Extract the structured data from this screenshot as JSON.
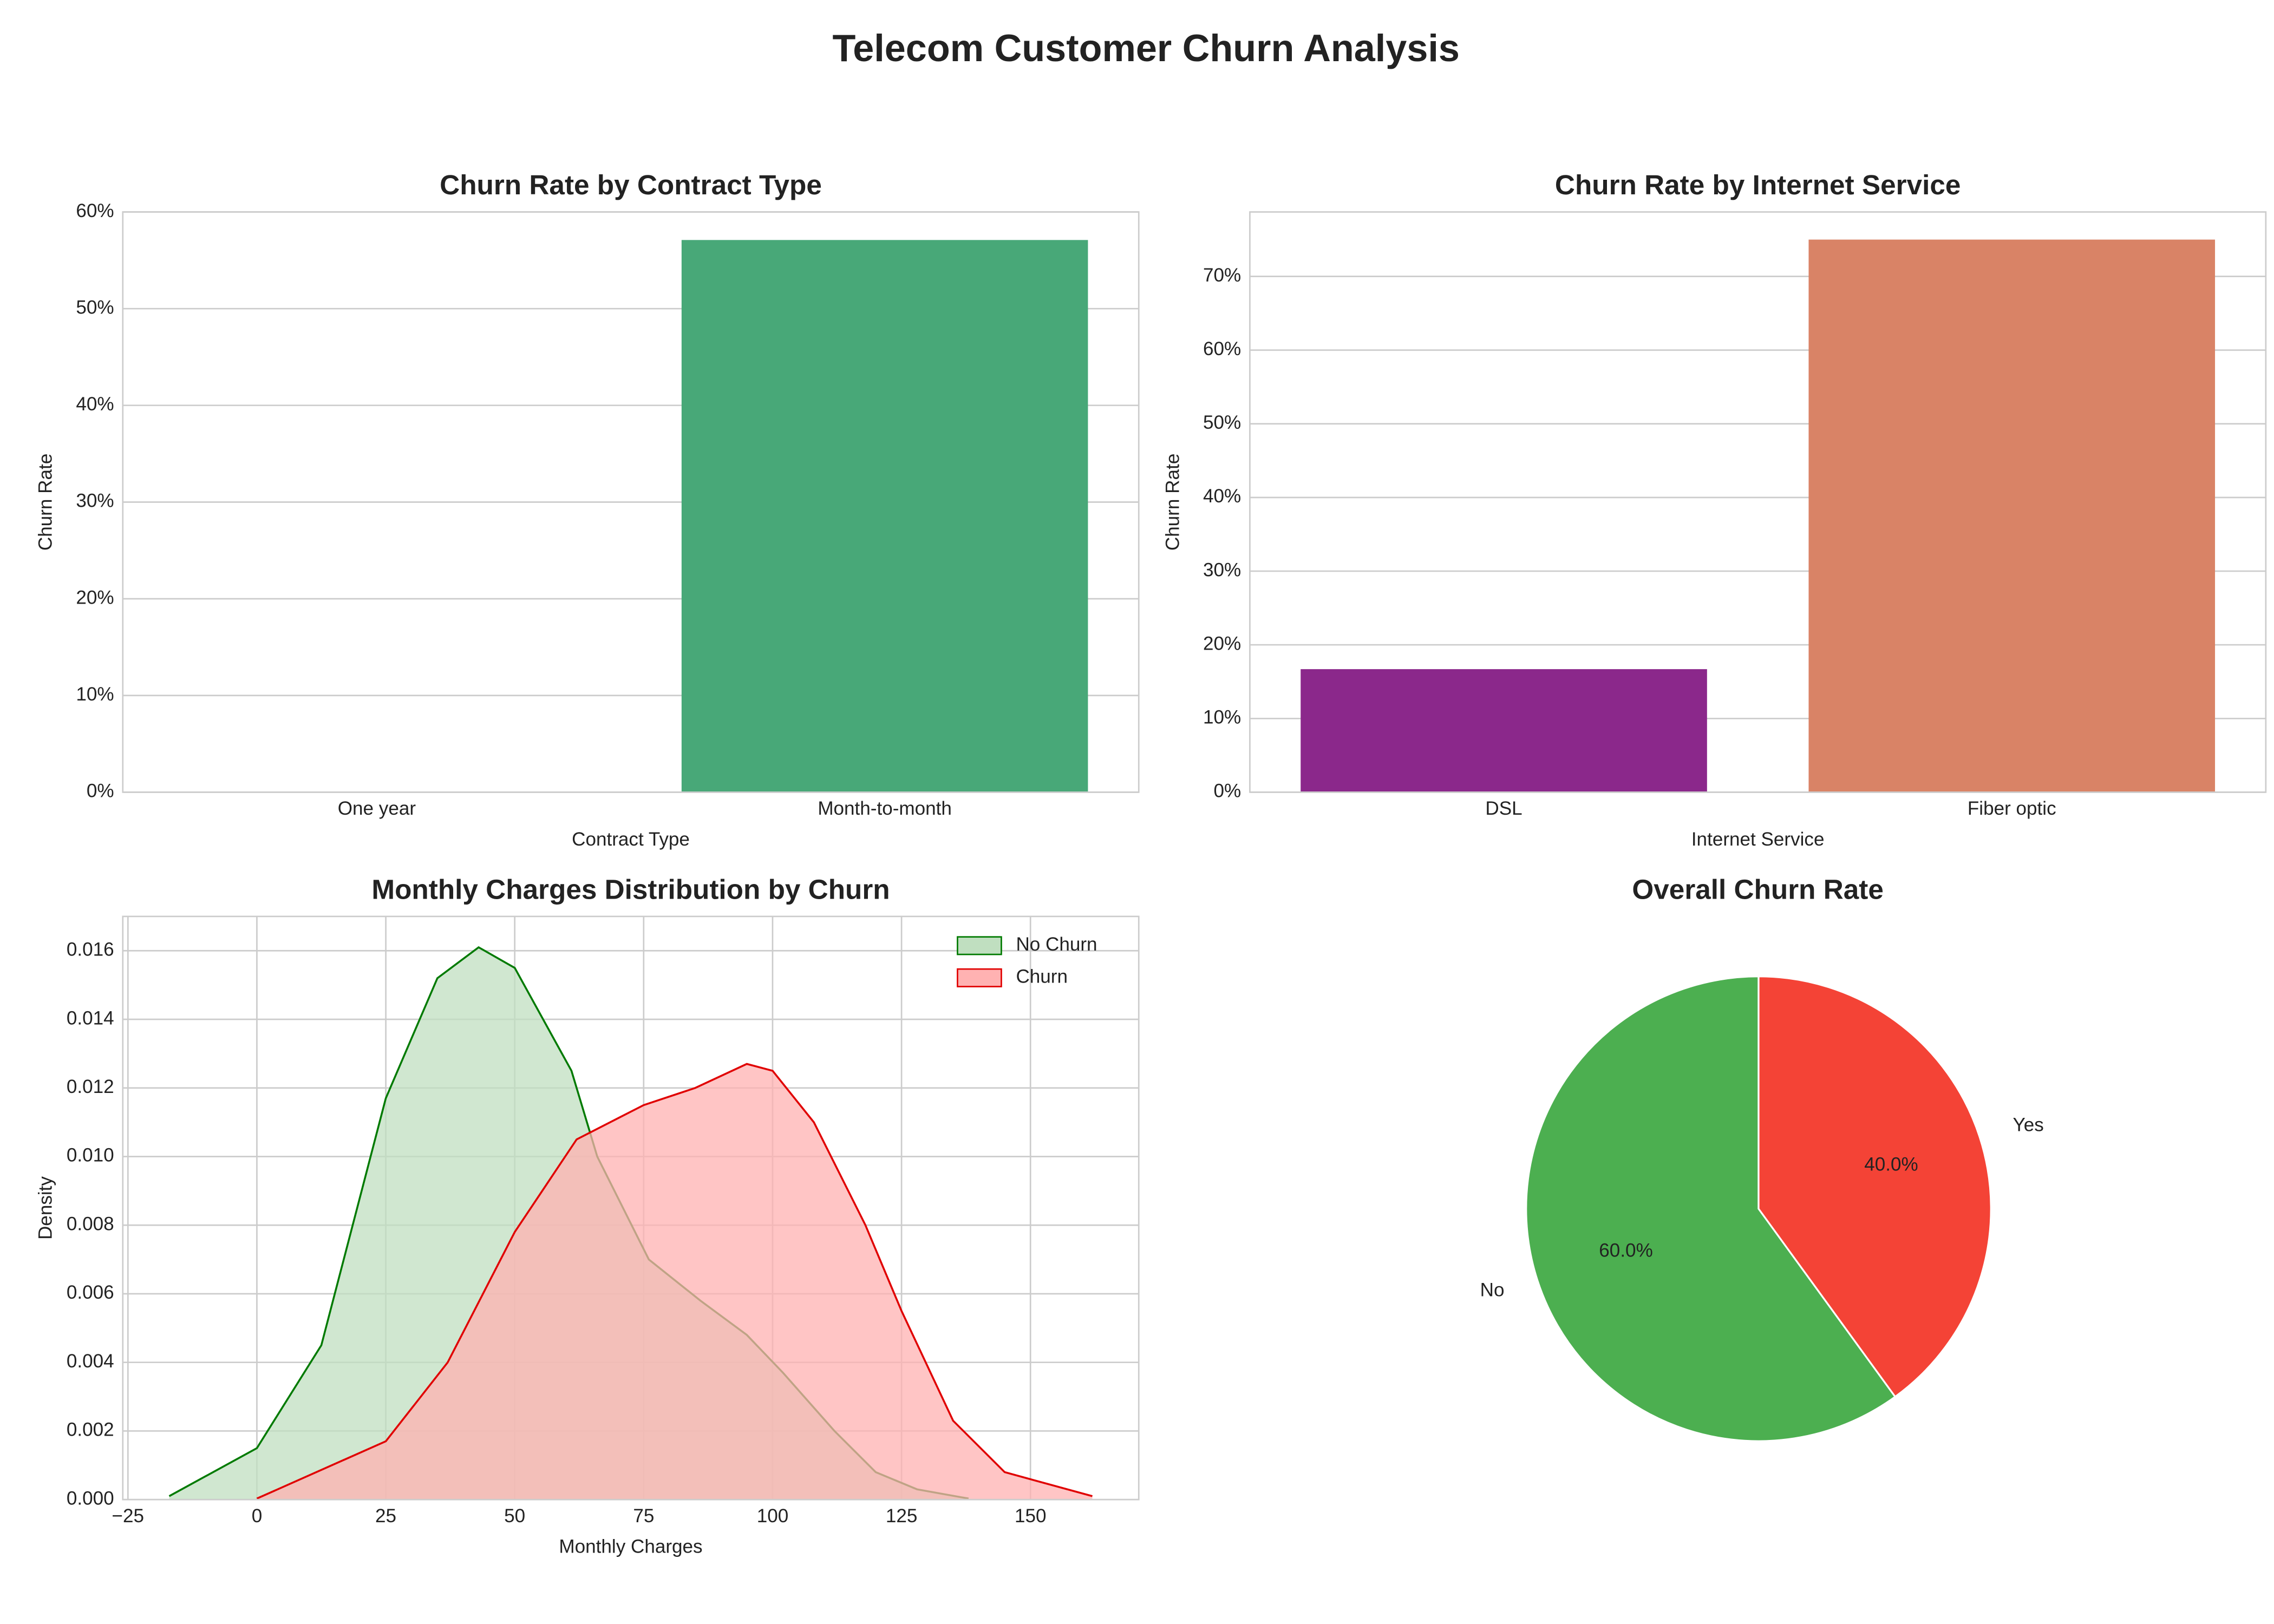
{
  "title": "Telecom Customer Churn Analysis",
  "chart_data": [
    {
      "type": "bar",
      "title": "Churn Rate by Contract Type",
      "xlabel": "Contract Type",
      "ylabel": "Churn Rate",
      "categories": [
        "One year",
        "Month-to-month"
      ],
      "values": [
        0,
        57.1
      ],
      "colors": [
        "#2f8f5b",
        "#48a878"
      ],
      "ylim": [
        0,
        60
      ],
      "yticks": [
        {
          "value": 0,
          "label": "0%"
        },
        {
          "value": 10,
          "label": "10%"
        },
        {
          "value": 20,
          "label": "20%"
        },
        {
          "value": 30,
          "label": "30%"
        },
        {
          "value": 40,
          "label": "40%"
        },
        {
          "value": 50,
          "label": "50%"
        },
        {
          "value": 60,
          "label": "60%"
        }
      ],
      "grid": true
    },
    {
      "type": "bar",
      "title": "Churn Rate by Internet Service",
      "xlabel": "Internet Service",
      "ylabel": "Churn Rate",
      "categories": [
        "DSL",
        "Fiber optic"
      ],
      "values": [
        16.7,
        75
      ],
      "colors": [
        "#8b288b",
        "#d98366"
      ],
      "ylim": [
        0,
        78.75
      ],
      "yticks": [
        {
          "value": 0,
          "label": "0%"
        },
        {
          "value": 10,
          "label": "10%"
        },
        {
          "value": 20,
          "label": "20%"
        },
        {
          "value": 30,
          "label": "30%"
        },
        {
          "value": 40,
          "label": "40%"
        },
        {
          "value": 50,
          "label": "50%"
        },
        {
          "value": 60,
          "label": "60%"
        },
        {
          "value": 70,
          "label": "70%"
        }
      ],
      "grid": true
    },
    {
      "type": "area",
      "title": "Monthly Charges Distribution by Churn",
      "xlabel": "Monthly Charges",
      "ylabel": "Density",
      "series": [
        {
          "name": "No Churn",
          "color": "#007a00",
          "fill": "#c0dfc0",
          "x": [
            -17,
            0,
            12.5,
            25,
            35,
            43,
            50,
            61,
            66,
            76,
            86,
            95,
            102,
            112,
            120,
            128,
            138
          ],
          "values": [
            0.0001,
            0.0015,
            0.0045,
            0.0117,
            0.0152,
            0.0161,
            0.0155,
            0.0125,
            0.01,
            0.007,
            0.0058,
            0.0048,
            0.0037,
            0.002,
            0.0008,
            0.0003,
            3e-05
          ]
        },
        {
          "name": "Churn",
          "color": "#e00000",
          "fill": "#ffb2b2",
          "x": [
            0,
            25,
            37,
            50,
            62,
            75,
            85,
            95,
            100,
            108,
            118,
            125,
            135,
            145,
            162
          ],
          "values": [
            3e-05,
            0.0017,
            0.004,
            0.0078,
            0.0105,
            0.0115,
            0.012,
            0.0127,
            0.0125,
            0.011,
            0.008,
            0.0055,
            0.0023,
            0.0008,
            0.0001
          ]
        }
      ],
      "xlim": [
        -26,
        171
      ],
      "ylim": [
        0,
        0.017
      ],
      "xticks": [
        {
          "value": -25,
          "label": "−25"
        },
        0,
        25,
        50,
        75,
        100,
        125,
        150
      ],
      "yticks": [
        {
          "value": 0,
          "label": "0.000"
        },
        {
          "value": 0.002,
          "label": "0.002"
        },
        {
          "value": 0.004,
          "label": "0.004"
        },
        {
          "value": 0.006,
          "label": "0.006"
        },
        {
          "value": 0.008,
          "label": "0.008"
        },
        {
          "value": 0.01,
          "label": "0.010"
        },
        {
          "value": 0.012,
          "label": "0.012"
        },
        {
          "value": 0.014,
          "label": "0.014"
        },
        {
          "value": 0.016,
          "label": "0.016"
        }
      ],
      "grid": true,
      "legend": "upper right"
    },
    {
      "type": "pie",
      "title": "Overall Churn Rate",
      "categories": [
        "No",
        "Yes"
      ],
      "values": [
        60,
        40
      ],
      "value_labels": [
        "60.0%",
        "40.0%"
      ],
      "colors": [
        "#4caf50",
        "#f44336"
      ],
      "startangle": 90
    }
  ]
}
